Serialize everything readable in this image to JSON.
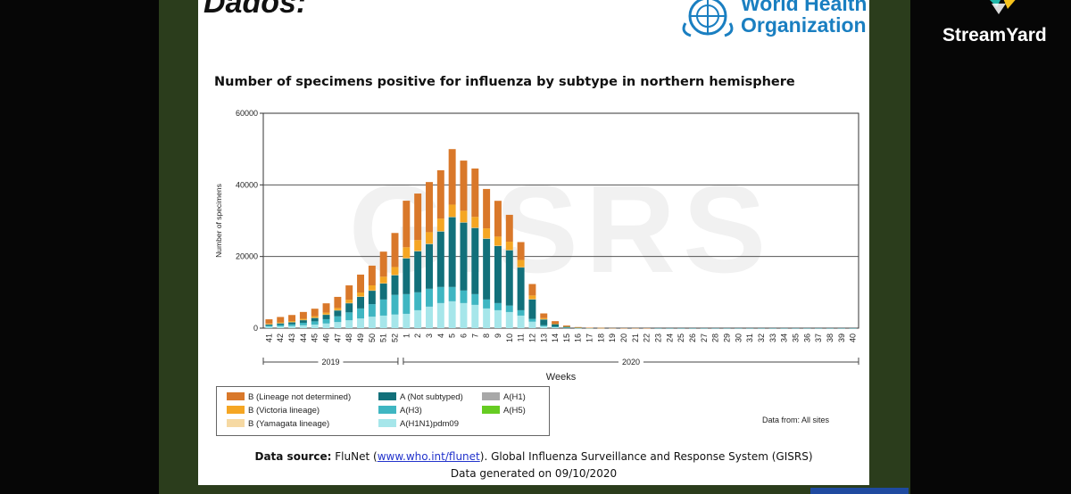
{
  "slide": {
    "corner_title": "Dados:",
    "who_logo_text": [
      "World Health",
      "Organization"
    ],
    "legend_items": [
      {
        "label": "B (Lineage not determined)",
        "color": "#d9782a"
      },
      {
        "label": "B (Victoria lineage)",
        "color": "#f5a623"
      },
      {
        "label": "B (Yamagata lineage)",
        "color": "#f6d9a3"
      },
      {
        "label": "A (Not subtyped)",
        "color": "#12707a"
      },
      {
        "label": "A(H3)",
        "color": "#3fb6c2"
      },
      {
        "label": "A(H1N1)pdm09",
        "color": "#a6e6ea"
      },
      {
        "label": "A(H1)",
        "color": "#a8a8a8"
      },
      {
        "label": "A(H5)",
        "color": "#66cc22"
      }
    ],
    "data_from": "Data from: All sites",
    "source_label": "Data source:",
    "source_text_1": "FluNet (",
    "source_link": "www.who.int/flunet",
    "source_text_2": "). Global Influenza Surveillance and Response System (GISRS)",
    "generated": "Data generated on 09/10/2020"
  },
  "overlay": {
    "brand": "StreamYard"
  },
  "chart_data": {
    "type": "bar",
    "stacked": true,
    "title": "Number of specimens positive for influenza by subtype in northern hemisphere",
    "xlabel": "Weeks",
    "ylabel": "Number of specimens",
    "ylim": [
      0,
      60000
    ],
    "yticks": [
      "0",
      "20000",
      "40000",
      "60000"
    ],
    "gridlines": [
      20000,
      40000
    ],
    "watermark": "GISRS",
    "year_groups": [
      {
        "label": "2019",
        "from": 0,
        "to": 11
      },
      {
        "label": "2020",
        "from": 12,
        "to": 51
      }
    ],
    "categories": [
      "41",
      "42",
      "43",
      "44",
      "45",
      "46",
      "47",
      "48",
      "49",
      "50",
      "51",
      "52",
      "1",
      "2",
      "3",
      "4",
      "5",
      "6",
      "7",
      "8",
      "9",
      "10",
      "11",
      "12",
      "13",
      "14",
      "15",
      "16",
      "17",
      "18",
      "19",
      "20",
      "21",
      "22",
      "23",
      "24",
      "25",
      "26",
      "27",
      "28",
      "29",
      "30",
      "31",
      "32",
      "33",
      "34",
      "35",
      "36",
      "37",
      "38",
      "39",
      "40"
    ],
    "series": [
      {
        "name": "A(H1N1)pdm09",
        "color": "#a6e6ea",
        "values": [
          400,
          500,
          600,
          800,
          1000,
          1300,
          1700,
          2200,
          2700,
          3200,
          3500,
          3800,
          4000,
          5000,
          6000,
          7000,
          7500,
          7000,
          6500,
          5500,
          5000,
          4500,
          3500,
          1800,
          500,
          250,
          100,
          50,
          20,
          10,
          5,
          5,
          5,
          5,
          5,
          5,
          5,
          5,
          5,
          5,
          5,
          5,
          5,
          5,
          5,
          5,
          5,
          5,
          5,
          5,
          5,
          5
        ]
      },
      {
        "name": "A(H3)",
        "color": "#3fb6c2",
        "values": [
          300,
          400,
          500,
          700,
          900,
          1200,
          1600,
          2200,
          2800,
          3500,
          4500,
          5500,
          5500,
          5000,
          5000,
          4500,
          4000,
          3500,
          3000,
          2500,
          2000,
          1800,
          1500,
          800,
          300,
          150,
          60,
          20,
          10,
          5,
          0,
          0,
          0,
          0,
          0,
          0,
          0,
          0,
          0,
          0,
          0,
          0,
          0,
          0,
          0,
          0,
          0,
          0,
          0,
          0,
          0,
          0
        ]
      },
      {
        "name": "A(H1)",
        "color": "#a8a8a8",
        "values": [
          0,
          0,
          0,
          0,
          0,
          0,
          0,
          0,
          0,
          0,
          0,
          0,
          0,
          0,
          0,
          0,
          0,
          0,
          0,
          0,
          0,
          0,
          0,
          0,
          0,
          0,
          0,
          0,
          0,
          0,
          0,
          0,
          0,
          0,
          0,
          0,
          0,
          0,
          0,
          0,
          0,
          0,
          0,
          0,
          0,
          0,
          0,
          0,
          0,
          0,
          0,
          0
        ]
      },
      {
        "name": "A(H5)",
        "color": "#66cc22",
        "values": [
          0,
          0,
          0,
          0,
          0,
          0,
          0,
          0,
          0,
          0,
          0,
          0,
          0,
          0,
          0,
          0,
          0,
          0,
          0,
          0,
          0,
          0,
          0,
          0,
          0,
          0,
          0,
          0,
          0,
          0,
          0,
          0,
          0,
          0,
          0,
          0,
          0,
          0,
          0,
          0,
          0,
          0,
          0,
          0,
          0,
          0,
          0,
          0,
          0,
          0,
          0,
          0
        ]
      },
      {
        "name": "A (Not subtyped)",
        "color": "#12707a",
        "values": [
          400,
          500,
          600,
          800,
          1000,
          1300,
          1700,
          2600,
          3300,
          3800,
          4500,
          5500,
          10000,
          11500,
          12500,
          15500,
          19500,
          19000,
          18500,
          17000,
          16000,
          15500,
          12000,
          5500,
          1700,
          700,
          250,
          100,
          50,
          30,
          20,
          10,
          10,
          5,
          5,
          5,
          5,
          5,
          5,
          5,
          5,
          5,
          5,
          5,
          5,
          5,
          5,
          5,
          5,
          5,
          5,
          5
        ]
      },
      {
        "name": "B (Yamagata lineage)",
        "color": "#f6d9a3",
        "values": [
          20,
          20,
          20,
          20,
          30,
          30,
          30,
          40,
          50,
          50,
          60,
          70,
          80,
          80,
          90,
          90,
          90,
          80,
          70,
          60,
          50,
          40,
          30,
          20,
          10,
          0,
          0,
          0,
          0,
          0,
          0,
          0,
          0,
          0,
          0,
          0,
          0,
          0,
          0,
          0,
          0,
          0,
          0,
          0,
          0,
          0,
          0,
          0,
          0,
          0,
          0,
          0
        ]
      },
      {
        "name": "B (Victoria lineage)",
        "color": "#f5a623",
        "values": [
          150,
          200,
          250,
          300,
          400,
          500,
          600,
          900,
          1100,
          1400,
          1800,
          2200,
          3000,
          3000,
          3200,
          3500,
          3400,
          3200,
          3000,
          2800,
          2500,
          2300,
          2000,
          1000,
          300,
          150,
          70,
          30,
          10,
          5,
          0,
          0,
          0,
          0,
          0,
          0,
          0,
          0,
          0,
          0,
          0,
          0,
          0,
          0,
          0,
          0,
          0,
          0,
          0,
          0,
          0,
          0
        ]
      },
      {
        "name": "B (Lineage not determined)",
        "color": "#d9782a",
        "values": [
          1200,
          1500,
          1700,
          1900,
          2100,
          2600,
          3100,
          4000,
          5000,
          5500,
          7000,
          9500,
          13000,
          13000,
          14000,
          13500,
          15500,
          14000,
          13500,
          11000,
          10000,
          7500,
          5000,
          3200,
          1300,
          700,
          250,
          100,
          40,
          20,
          10,
          5,
          5,
          5,
          0,
          0,
          0,
          0,
          0,
          0,
          0,
          0,
          0,
          0,
          0,
          0,
          0,
          0,
          0,
          0,
          0,
          0
        ]
      }
    ]
  }
}
